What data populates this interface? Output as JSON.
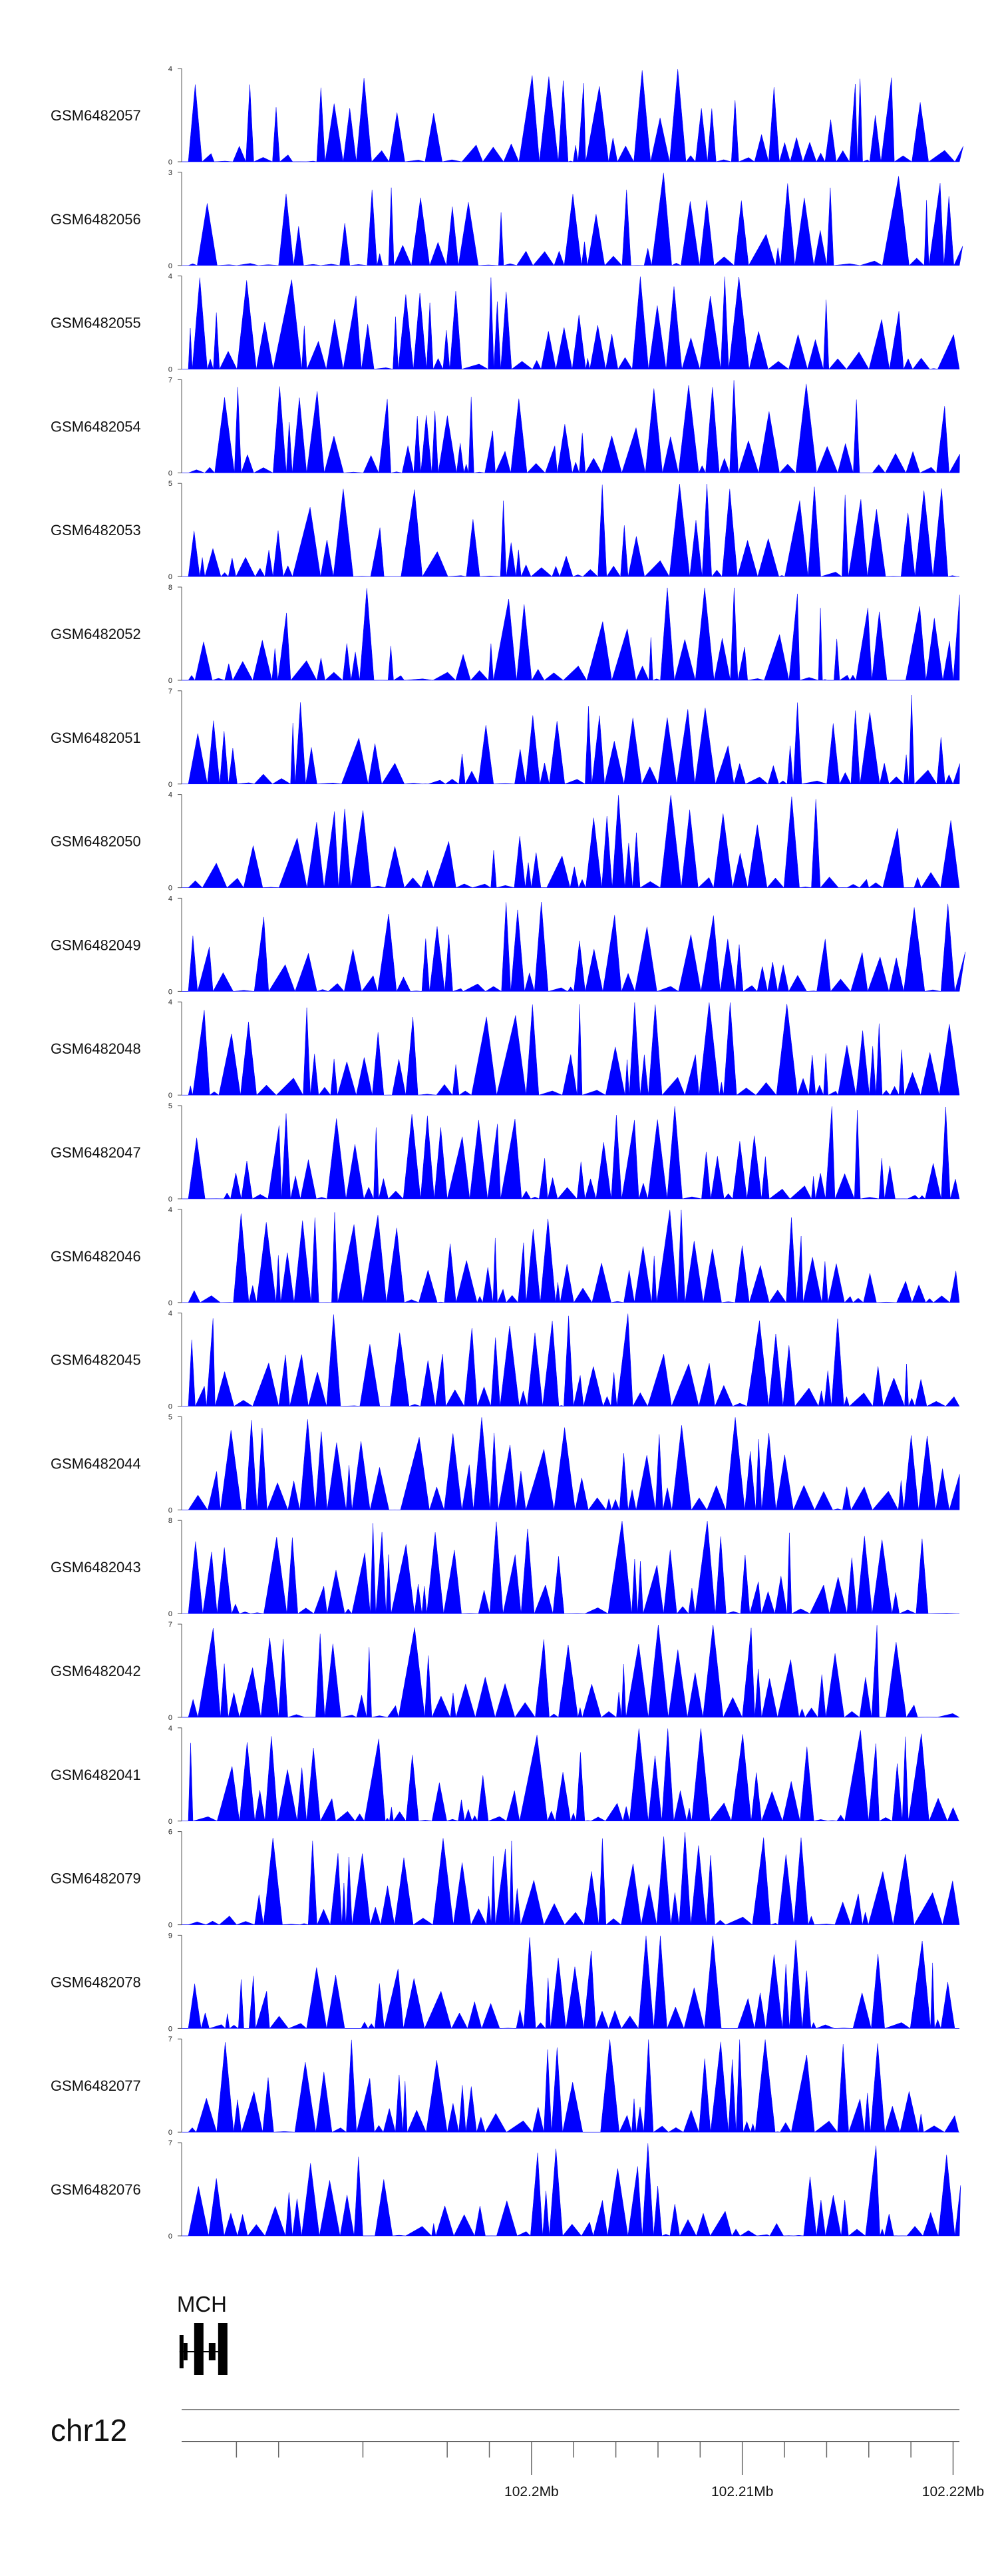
{
  "chart_data": {
    "type": "area",
    "color": "#0000ff",
    "x_range": [
      102.1834,
      102.2203
    ],
    "tracks": [
      {
        "name": "GSM6482057",
        "ymax": 4,
        "seed": 57
      },
      {
        "name": "GSM6482056",
        "ymax": 3,
        "seed": 56
      },
      {
        "name": "GSM6482055",
        "ymax": 4,
        "seed": 55
      },
      {
        "name": "GSM6482054",
        "ymax": 7,
        "seed": 54
      },
      {
        "name": "GSM6482053",
        "ymax": 5,
        "seed": 53
      },
      {
        "name": "GSM6482052",
        "ymax": 8,
        "seed": 52
      },
      {
        "name": "GSM6482051",
        "ymax": 7,
        "seed": 51
      },
      {
        "name": "GSM6482050",
        "ymax": 4,
        "seed": 50
      },
      {
        "name": "GSM6482049",
        "ymax": 4,
        "seed": 49
      },
      {
        "name": "GSM6482048",
        "ymax": 4,
        "seed": 48
      },
      {
        "name": "GSM6482047",
        "ymax": 5,
        "seed": 47
      },
      {
        "name": "GSM6482046",
        "ymax": 4,
        "seed": 46
      },
      {
        "name": "GSM6482045",
        "ymax": 4,
        "seed": 45
      },
      {
        "name": "GSM6482044",
        "ymax": 5,
        "seed": 44
      },
      {
        "name": "GSM6482043",
        "ymax": 8,
        "seed": 43
      },
      {
        "name": "GSM6482042",
        "ymax": 7,
        "seed": 42
      },
      {
        "name": "GSM6482041",
        "ymax": 4,
        "seed": 41
      },
      {
        "name": "GSM6482079",
        "ymax": 6,
        "seed": 79
      },
      {
        "name": "GSM6482078",
        "ymax": 9,
        "seed": 78
      },
      {
        "name": "GSM6482077",
        "ymax": 7,
        "seed": 77
      },
      {
        "name": "GSM6482076",
        "ymax": 7,
        "seed": 76
      }
    ],
    "gene": {
      "label": "MCH",
      "start": 102.1833,
      "end": 102.1855
    },
    "chromosome": "chr12",
    "x_ticks": [
      {
        "value": 102.2,
        "label": "102.2Mb"
      },
      {
        "value": 102.21,
        "label": "102.21Mb"
      },
      {
        "value": 102.22,
        "label": "102.22Mb"
      }
    ],
    "minor_ticks": [
      102.186,
      102.188,
      102.192,
      102.196,
      102.198,
      102.202,
      102.204,
      102.206,
      102.208,
      102.212,
      102.214,
      102.216,
      102.218
    ]
  }
}
